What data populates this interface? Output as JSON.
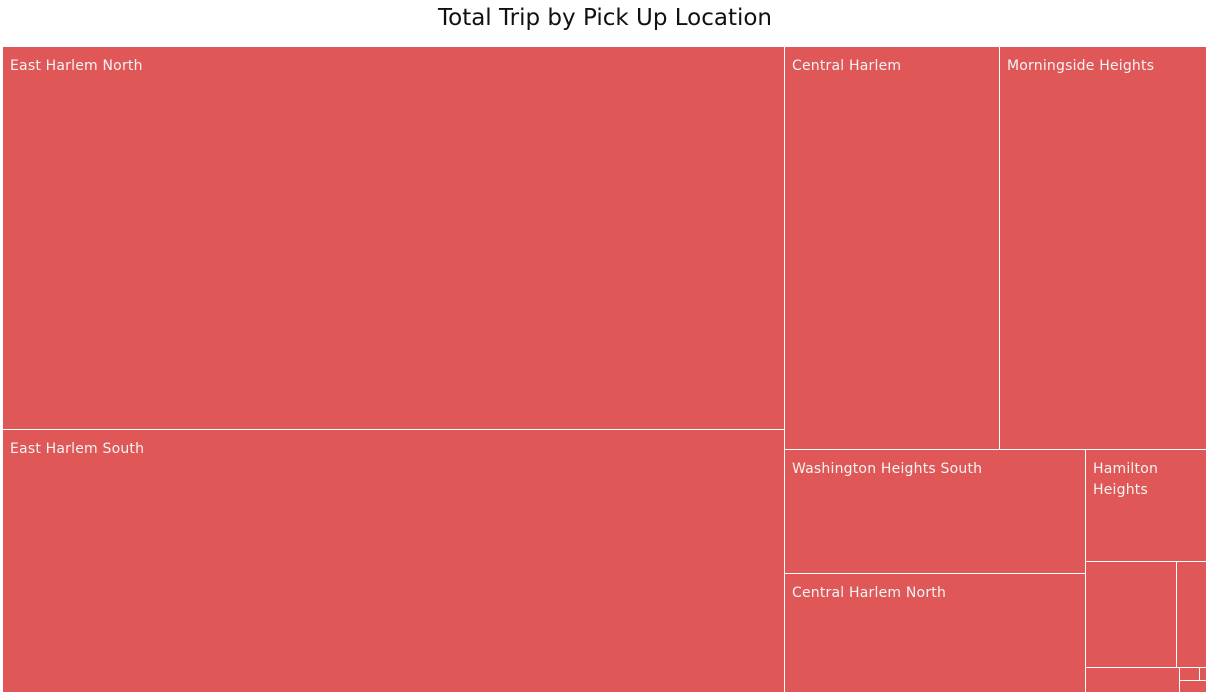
{
  "chart_data": {
    "type": "treemap",
    "title": "Total Trip by Pick Up Location",
    "color": "#e05758",
    "tiles": [
      {
        "label": "East Harlem North"
      },
      {
        "label": "East Harlem South"
      },
      {
        "label": "Central Harlem"
      },
      {
        "label": "Morningside Heights"
      },
      {
        "label": "Washington Heights South"
      },
      {
        "label": "Central Harlem North"
      },
      {
        "label": "Hamilton Heights"
      },
      {
        "label": ""
      },
      {
        "label": ""
      },
      {
        "label": ""
      },
      {
        "label": ""
      },
      {
        "label": ""
      },
      {
        "label": ""
      }
    ]
  }
}
